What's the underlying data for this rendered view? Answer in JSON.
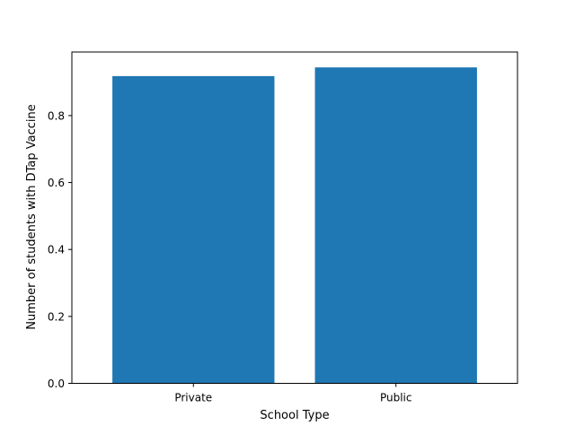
{
  "chart_data": {
    "type": "bar",
    "title": "",
    "xlabel": "School Type",
    "ylabel": "Number of students with DTap Vaccine",
    "categories": [
      "Private",
      "Public"
    ],
    "values": [
      0.918,
      0.944
    ],
    "ylim": [
      0,
      0.99
    ],
    "yticks": [
      0.0,
      0.2,
      0.4,
      0.6,
      0.8
    ],
    "ytick_labels": [
      "0.0",
      "0.2",
      "0.4",
      "0.6",
      "0.8"
    ],
    "grid": false,
    "legend": "none",
    "bar_color": "#1f77b4"
  }
}
